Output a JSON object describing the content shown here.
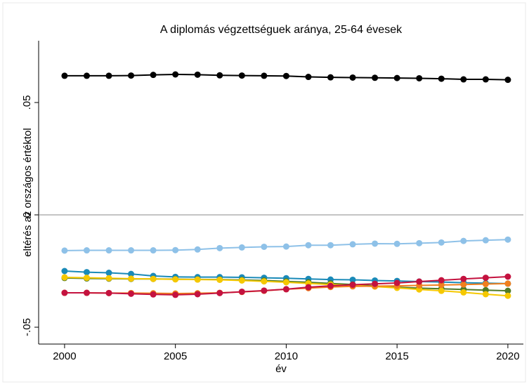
{
  "chart_data": {
    "type": "line",
    "title": "A diplomás végzettséguek aránya, 25-64 évesek",
    "x_label": "év",
    "y_label": "eltérés az országos értéktol",
    "x": [
      2000,
      2001,
      2002,
      2003,
      2004,
      2005,
      2006,
      2007,
      2008,
      2009,
      2010,
      2011,
      2012,
      2013,
      2014,
      2015,
      2016,
      2017,
      2018,
      2019,
      2020
    ],
    "xlim": [
      1998.83,
      2020.7
    ],
    "xticks": [
      2000,
      2005,
      2010,
      2015,
      2020
    ],
    "ylim": [
      -0.0575,
      0.0775
    ],
    "yticks": [
      {
        "value": -0.05,
        "label": "-.05"
      },
      0,
      {
        "value": 0.05,
        "label": ".05"
      }
    ],
    "zero_line": true,
    "series": [
      {
        "color": "#000000",
        "values": [
          0.0619,
          0.0619,
          0.0619,
          0.062,
          0.0623,
          0.0625,
          0.0624,
          0.0621,
          0.062,
          0.0619,
          0.0618,
          0.0614,
          0.0612,
          0.0611,
          0.061,
          0.0609,
          0.0608,
          0.0606,
          0.0603,
          0.0603,
          0.0601
        ]
      },
      {
        "color": "#8ec1e8",
        "values": [
          -0.0159,
          -0.0158,
          -0.0158,
          -0.0158,
          -0.0158,
          -0.0157,
          -0.0154,
          -0.0148,
          -0.0145,
          -0.0142,
          -0.0141,
          -0.0135,
          -0.0135,
          -0.0131,
          -0.0128,
          -0.0129,
          -0.0126,
          -0.0123,
          -0.0116,
          -0.0113,
          -0.011
        ]
      },
      {
        "color": "#1a8ab8",
        "values": [
          -0.025,
          -0.0255,
          -0.0258,
          -0.0263,
          -0.0272,
          -0.0276,
          -0.0277,
          -0.0277,
          -0.0278,
          -0.028,
          -0.0282,
          -0.0285,
          -0.0288,
          -0.0289,
          -0.0292,
          -0.0294,
          -0.0297,
          -0.0299,
          -0.0302,
          -0.0304,
          -0.0306
        ]
      },
      {
        "color": "#4f7a28",
        "values": [
          -0.0281,
          -0.0283,
          -0.0284,
          -0.0285,
          -0.0285,
          -0.0286,
          -0.0287,
          -0.0288,
          -0.029,
          -0.0292,
          -0.0296,
          -0.03,
          -0.0305,
          -0.031,
          -0.0316,
          -0.0322,
          -0.0326,
          -0.0329,
          -0.0332,
          -0.0335,
          -0.0338
        ]
      },
      {
        "color": "#f5c800",
        "values": [
          -0.0278,
          -0.028,
          -0.0282,
          -0.0284,
          -0.0285,
          -0.0287,
          -0.0288,
          -0.0289,
          -0.0292,
          -0.0296,
          -0.03,
          -0.0305,
          -0.031,
          -0.0314,
          -0.0319,
          -0.0325,
          -0.0332,
          -0.0338,
          -0.0345,
          -0.0353,
          -0.036
        ]
      },
      {
        "color": "#f07f1e",
        "values": [
          -0.0347,
          -0.0347,
          -0.0348,
          -0.0348,
          -0.0349,
          -0.035,
          -0.0349,
          -0.0347,
          -0.0343,
          -0.0338,
          -0.0331,
          -0.0326,
          -0.0321,
          -0.0318,
          -0.0317,
          -0.0316,
          -0.0314,
          -0.0312,
          -0.031,
          -0.0308,
          -0.0306
        ]
      },
      {
        "color": "#c4123f",
        "values": [
          -0.0347,
          -0.0347,
          -0.0348,
          -0.0351,
          -0.0354,
          -0.0356,
          -0.0353,
          -0.0348,
          -0.0342,
          -0.0337,
          -0.0331,
          -0.0322,
          -0.0316,
          -0.0311,
          -0.0307,
          -0.0303,
          -0.0297,
          -0.0291,
          -0.0285,
          -0.028,
          -0.0275
        ]
      }
    ]
  }
}
